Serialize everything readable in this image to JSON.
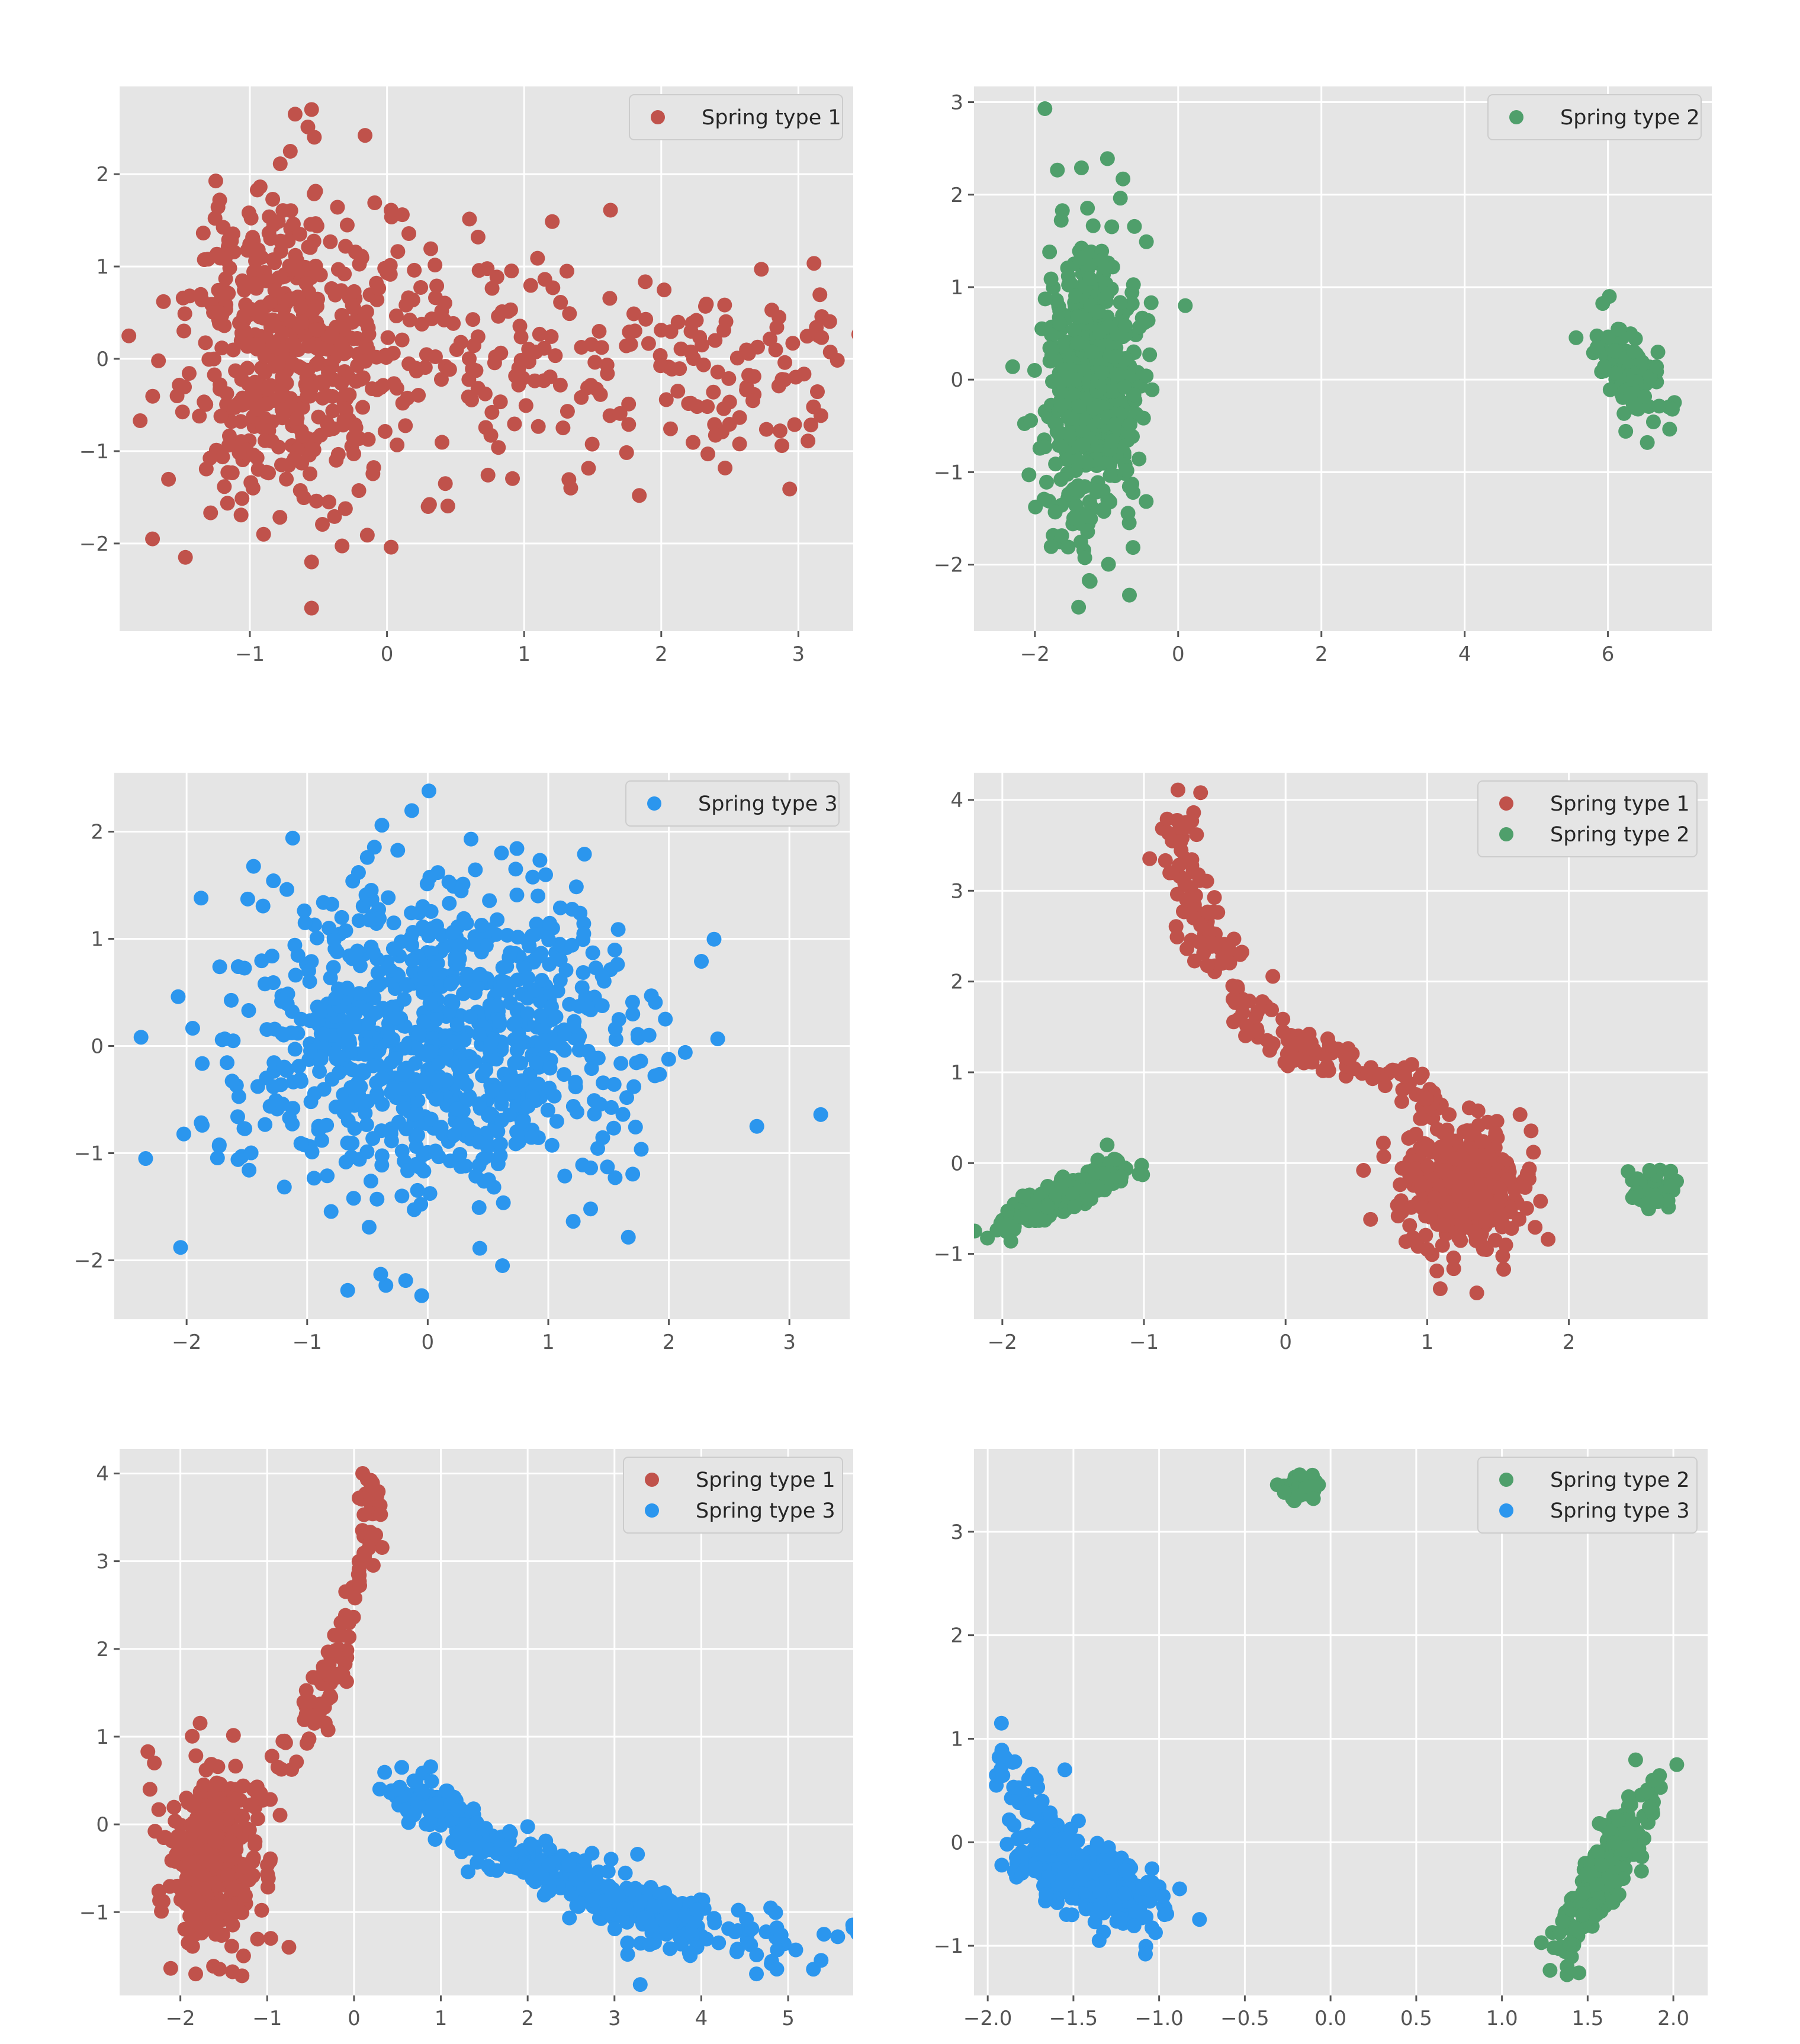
{
  "figure": {
    "series_colors": {
      "Spring type 1": "#c0524b",
      "Spring type 2": "#4f9f6b",
      "Spring type 3": "#2b96ee"
    }
  },
  "chart_data": [
    {
      "type": "scatter",
      "title": "",
      "xlabel": "",
      "ylabel": "",
      "xlim": [
        -1.95,
        3.4
      ],
      "ylim": [
        -2.95,
        2.95
      ],
      "xticks": [
        -1,
        0,
        1,
        2,
        3
      ],
      "yticks": [
        -2,
        -1,
        0,
        1,
        2
      ],
      "grid": true,
      "legend_position": "top-right",
      "series": [
        {
          "name": "Spring type 1",
          "color": "#c0524b",
          "n": 700,
          "points": [
            [
              -0.55,
              2.7
            ],
            [
              -0.67,
              2.65
            ],
            [
              -0.16,
              2.42
            ],
            [
              -0.53,
              2.4
            ],
            [
              -1.22,
              1.72
            ],
            [
              0.03,
              1.61
            ],
            [
              1.63,
              1.61
            ],
            [
              2.73,
              0.97
            ],
            [
              3.17,
              0.23
            ],
            [
              3.11,
              -0.52
            ],
            [
              -1.63,
              0.62
            ],
            [
              -1.8,
              -0.67
            ],
            [
              -1.71,
              -1.95
            ],
            [
              -1.47,
              -2.15
            ],
            [
              -0.55,
              -2.7
            ],
            [
              0.03,
              -2.04
            ],
            [
              1.84,
              -1.48
            ],
            [
              2.34,
              -1.03
            ],
            [
              2.88,
              -0.94
            ],
            [
              -0.9,
              -1.9
            ],
            [
              -0.55,
              -2.2
            ],
            [
              1.34,
              -1.4
            ],
            [
              0.3,
              -1.6
            ]
          ]
        }
      ]
    },
    {
      "type": "scatter",
      "title": "",
      "xlabel": "",
      "ylabel": "",
      "xlim": [
        -2.85,
        7.45
      ],
      "ylim": [
        -2.72,
        3.17
      ],
      "xticks": [
        -2,
        0,
        2,
        4,
        6
      ],
      "yticks": [
        -2,
        -1,
        0,
        1,
        2,
        3
      ],
      "grid": true,
      "legend_position": "top-right",
      "series": [
        {
          "name": "Spring type 2",
          "color": "#4f9f6b",
          "n": 700,
          "points": [
            [
              -1.86,
              2.93
            ],
            [
              -1.35,
              2.29
            ],
            [
              -0.77,
              2.17
            ],
            [
              0.1,
              0.8
            ],
            [
              -2.31,
              0.14
            ],
            [
              -1.39,
              -2.46
            ],
            [
              -0.68,
              -2.33
            ],
            [
              6.02,
              0.9
            ],
            [
              6.9,
              -0.32
            ],
            [
              6.55,
              -0.68
            ],
            [
              5.85,
              0.35
            ]
          ]
        }
      ]
    },
    {
      "type": "scatter",
      "title": "",
      "xlabel": "",
      "ylabel": "",
      "xlim": [
        -2.6,
        3.5
      ],
      "ylim": [
        -2.55,
        2.55
      ],
      "xticks": [
        -2,
        -1,
        0,
        1,
        2,
        3
      ],
      "yticks": [
        -2,
        -1,
        0,
        1,
        2
      ],
      "grid": true,
      "legend_position": "top-right",
      "series": [
        {
          "name": "Spring type 3",
          "color": "#2b96ee",
          "n": 900,
          "points": [
            [
              0.01,
              2.38
            ],
            [
              -0.38,
              2.06
            ],
            [
              -1.88,
              1.38
            ],
            [
              -1.12,
              1.94
            ],
            [
              1.3,
              1.79
            ],
            [
              2.27,
              0.79
            ],
            [
              2.73,
              -0.75
            ],
            [
              3.26,
              -0.64
            ],
            [
              -2.34,
              -1.05
            ],
            [
              -2.05,
              -1.88
            ],
            [
              -0.05,
              -2.33
            ],
            [
              -0.39,
              -2.13
            ],
            [
              0.62,
              -2.05
            ],
            [
              -2.07,
              0.46
            ]
          ]
        }
      ]
    },
    {
      "type": "scatter",
      "title": "",
      "xlabel": "",
      "ylabel": "",
      "xlim": [
        -2.2,
        2.98
      ],
      "ylim": [
        -1.72,
        4.3
      ],
      "xticks": [
        -2,
        -1,
        0,
        1,
        2
      ],
      "yticks": [
        -1,
        0,
        1,
        2,
        3,
        4
      ],
      "grid": true,
      "legend_position": "top-right",
      "series": [
        {
          "name": "Spring type 1",
          "color": "#c0524b",
          "n": 650,
          "points": [
            [
              -0.76,
              4.11
            ],
            [
              -0.6,
              4.08
            ],
            [
              -0.8,
              3.2
            ],
            [
              -0.7,
              2.9
            ],
            [
              -0.6,
              2.62
            ],
            [
              -0.45,
              2.2
            ],
            [
              -0.3,
              1.8
            ],
            [
              -0.2,
              1.45
            ],
            [
              0.2,
              1.25
            ],
            [
              0.45,
              1.15
            ],
            [
              0.75,
              1.02
            ],
            [
              1.35,
              -1.43
            ],
            [
              1.54,
              -1.17
            ],
            [
              1.8,
              -0.42
            ],
            [
              1.75,
              0.12
            ],
            [
              0.6,
              -0.62
            ],
            [
              0.55,
              -0.08
            ],
            [
              1.2,
              0.05
            ]
          ]
        },
        {
          "name": "Spring type 2",
          "color": "#4f9f6b",
          "n": 330,
          "points": [
            [
              -1.97,
              -0.68
            ],
            [
              -1.94,
              -0.86
            ],
            [
              -1.26,
              0.2
            ],
            [
              -1.16,
              -0.15
            ],
            [
              2.57,
              -0.08
            ],
            [
              2.72,
              -0.25
            ],
            [
              2.55,
              -0.45
            ],
            [
              2.45,
              -0.38
            ]
          ]
        }
      ]
    },
    {
      "type": "scatter",
      "title": "",
      "xlabel": "",
      "ylabel": "",
      "xlim": [
        -2.7,
        5.75
      ],
      "ylim": [
        -1.95,
        4.28
      ],
      "xticks": [
        -2,
        -1,
        0,
        1,
        2,
        3,
        4,
        5
      ],
      "yticks": [
        -1,
        0,
        1,
        2,
        3,
        4
      ],
      "grid": true,
      "legend_position": "top-right",
      "series": [
        {
          "name": "Spring type 1",
          "color": "#c0524b",
          "n": 470,
          "points": [
            [
              0.1,
              4.0
            ],
            [
              0.2,
              3.86
            ],
            [
              0.25,
              3.3
            ],
            [
              0.05,
              2.85
            ],
            [
              -0.15,
              2.3
            ],
            [
              -0.35,
              1.75
            ],
            [
              -0.5,
              1.4
            ],
            [
              -0.8,
              0.95
            ],
            [
              -2.3,
              0.7
            ],
            [
              -2.35,
              0.4
            ],
            [
              -0.75,
              -1.4
            ],
            [
              -1.4,
              -1.68
            ],
            [
              -1.55,
              -1.65
            ],
            [
              -1.85,
              -1.1
            ]
          ]
        },
        {
          "name": "Spring type 3",
          "color": "#2b96ee",
          "n": 470,
          "points": [
            [
              0.55,
              0.65
            ],
            [
              0.5,
              0.4
            ],
            [
              4.52,
              -1.08
            ],
            [
              4.87,
              -1.65
            ],
            [
              4.92,
              -1.26
            ],
            [
              5.38,
              -1.55
            ],
            [
              3.95,
              -1.4
            ],
            [
              4.2,
              -1.35
            ],
            [
              3.65,
              -1.05
            ],
            [
              3.15,
              -1.35
            ],
            [
              2.97,
              -0.8
            ]
          ]
        }
      ]
    },
    {
      "type": "scatter",
      "title": "",
      "xlabel": "",
      "ylabel": "",
      "xlim": [
        -2.08,
        2.2
      ],
      "ylim": [
        -1.48,
        3.8
      ],
      "xticks": [
        -2.0,
        -1.5,
        -1.0,
        -0.5,
        0.0,
        0.5,
        1.0,
        1.5,
        2.0
      ],
      "xtick_labels": [
        "−2.0",
        "−1.5",
        "−1.0",
        "−0.5",
        "0.0",
        "0.5",
        "1.0",
        "1.5",
        "2.0"
      ],
      "yticks": [
        -1,
        0,
        1,
        2,
        3
      ],
      "grid": true,
      "legend_position": "top-right",
      "series": [
        {
          "name": "Spring type 2",
          "color": "#4f9f6b",
          "n": 430,
          "points": [
            [
              -0.18,
              3.55
            ],
            [
              -0.27,
              3.38
            ],
            [
              -0.1,
              3.32
            ],
            [
              2.02,
              0.75
            ],
            [
              1.23,
              -0.97
            ],
            [
              1.38,
              -1.2
            ],
            [
              1.38,
              -1.28
            ],
            [
              1.88,
              0.6
            ]
          ]
        },
        {
          "name": "Spring type 3",
          "color": "#2b96ee",
          "n": 430,
          "points": [
            [
              -1.92,
              1.15
            ],
            [
              -1.95,
              0.55
            ],
            [
              -1.55,
              0.7
            ],
            [
              -1.08,
              -1.08
            ],
            [
              -0.88,
              -0.45
            ],
            [
              -1.8,
              -0.1
            ],
            [
              -1.35,
              -0.95
            ]
          ]
        }
      ]
    }
  ]
}
